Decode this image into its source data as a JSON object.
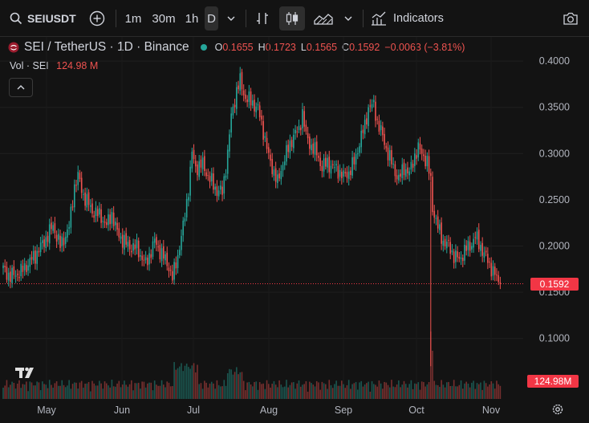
{
  "toolbar": {
    "symbol": "SEIUSDT",
    "intervals": [
      "1m",
      "30m",
      "1h",
      "D"
    ],
    "active_interval": "D",
    "indicators_label": "Indicators"
  },
  "legend": {
    "title": "SEI / TetherUS · 1D · Binance",
    "open_label": "O",
    "open": "0.1655",
    "high_label": "H",
    "high": "0.1723",
    "low_label": "L",
    "low": "0.1565",
    "close_label": "C",
    "close": "0.1592",
    "change": "−0.0063 (−3.81%)",
    "volume_label": "Vol · SEI",
    "volume": "124.98 M"
  },
  "colors": {
    "up": "#26a69a",
    "down": "#ef5350",
    "price_tag": "#f23645"
  },
  "chart_data": {
    "type": "candlestick",
    "symbol": "SEI / TetherUS",
    "interval": "1D",
    "exchange": "Binance",
    "ylim": [
      0.075,
      0.4
    ],
    "y_ticks": [
      "0.4000",
      "0.3500",
      "0.3000",
      "0.2500",
      "0.2000",
      "0.1500",
      "0.1000"
    ],
    "x_ticks": [
      "May",
      "Jun",
      "Jul",
      "Aug",
      "Sep",
      "Oct",
      "Nov"
    ],
    "last_price": "0.1592",
    "last_volume": "124.98M",
    "close_path": [
      [
        0,
        0.175
      ],
      [
        4,
        0.167
      ],
      [
        10,
        0.172
      ],
      [
        18,
        0.19
      ],
      [
        24,
        0.208
      ],
      [
        28,
        0.222
      ],
      [
        32,
        0.2
      ],
      [
        37,
        0.22
      ],
      [
        40,
        0.265
      ],
      [
        42,
        0.275
      ],
      [
        45,
        0.255
      ],
      [
        50,
        0.238
      ],
      [
        55,
        0.232
      ],
      [
        58,
        0.222
      ],
      [
        61,
        0.235
      ],
      [
        64,
        0.214
      ],
      [
        70,
        0.2
      ],
      [
        75,
        0.198
      ],
      [
        80,
        0.18
      ],
      [
        85,
        0.205
      ],
      [
        90,
        0.188
      ],
      [
        93,
        0.178
      ],
      [
        95,
        0.165
      ],
      [
        98,
        0.19
      ],
      [
        101,
        0.22
      ],
      [
        104,
        0.262
      ],
      [
        106,
        0.3
      ],
      [
        108,
        0.285
      ],
      [
        112,
        0.288
      ],
      [
        116,
        0.272
      ],
      [
        120,
        0.26
      ],
      [
        123,
        0.258
      ],
      [
        126,
        0.3
      ],
      [
        128,
        0.34
      ],
      [
        131,
        0.368
      ],
      [
        133,
        0.378
      ],
      [
        136,
        0.36
      ],
      [
        140,
        0.355
      ],
      [
        143,
        0.348
      ],
      [
        146,
        0.325
      ],
      [
        149,
        0.296
      ],
      [
        152,
        0.28
      ],
      [
        154,
        0.268
      ],
      [
        157,
        0.29
      ],
      [
        160,
        0.305
      ],
      [
        163,
        0.32
      ],
      [
        166,
        0.325
      ],
      [
        168,
        0.345
      ],
      [
        170,
        0.318
      ],
      [
        173,
        0.308
      ],
      [
        176,
        0.3
      ],
      [
        179,
        0.285
      ],
      [
        182,
        0.29
      ],
      [
        185,
        0.285
      ],
      [
        188,
        0.282
      ],
      [
        191,
        0.275
      ],
      [
        194,
        0.28
      ],
      [
        197,
        0.29
      ],
      [
        200,
        0.312
      ],
      [
        203,
        0.33
      ],
      [
        205,
        0.35
      ],
      [
        208,
        0.352
      ],
      [
        210,
        0.335
      ],
      [
        213,
        0.318
      ],
      [
        216,
        0.3
      ],
      [
        219,
        0.285
      ],
      [
        222,
        0.272
      ],
      [
        225,
        0.285
      ],
      [
        228,
        0.278
      ],
      [
        231,
        0.298
      ],
      [
        233,
        0.305
      ],
      [
        236,
        0.298
      ],
      [
        238,
        0.29
      ],
      [
        240,
        0.27
      ],
      [
        241,
        0.242
      ],
      [
        244,
        0.22
      ],
      [
        247,
        0.205
      ],
      [
        250,
        0.2
      ],
      [
        253,
        0.19
      ],
      [
        256,
        0.185
      ],
      [
        259,
        0.195
      ],
      [
        262,
        0.2
      ],
      [
        265,
        0.21
      ],
      [
        268,
        0.2
      ],
      [
        270,
        0.19
      ],
      [
        272,
        0.185
      ],
      [
        275,
        0.172
      ],
      [
        277,
        0.165
      ],
      [
        279,
        0.1592
      ]
    ]
  }
}
